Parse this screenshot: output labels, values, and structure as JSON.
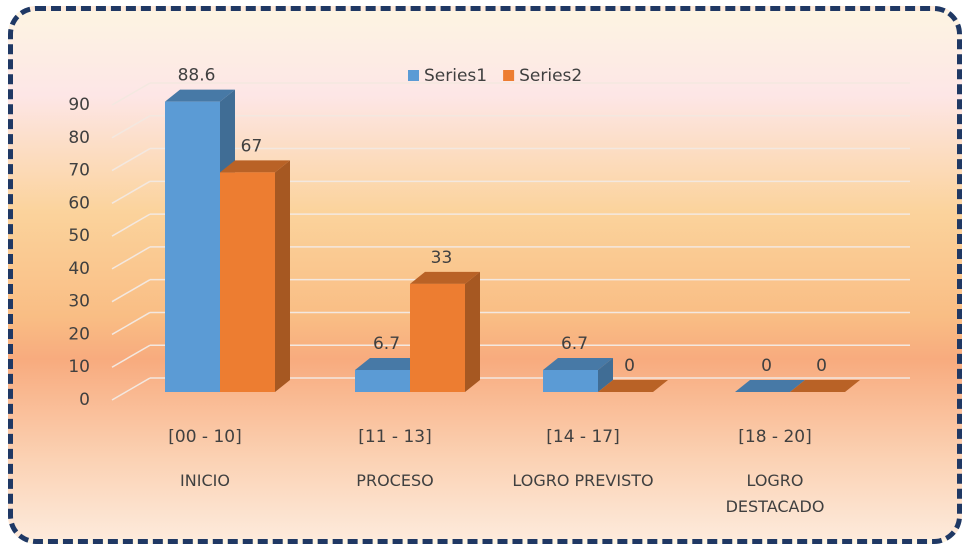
{
  "chart_data": {
    "type": "bar3d",
    "categories": [
      "[00 - 10]",
      "[11 - 13]",
      "[14 - 17]",
      "[18 - 20]"
    ],
    "groups": [
      "INICIO",
      "PROCESO",
      "LOGRO PREVISTO",
      "LOGRO DESTACADO"
    ],
    "series": [
      {
        "name": "Series1",
        "color": "#5b9bd5",
        "values": [
          88.6,
          6.7,
          6.7,
          0
        ]
      },
      {
        "name": "Series2",
        "color": "#ed7d31",
        "values": [
          67,
          33,
          0,
          0
        ]
      }
    ],
    "ylim": [
      0,
      90
    ],
    "yticks": [
      0,
      10,
      20,
      30,
      40,
      50,
      60,
      70,
      80,
      90
    ],
    "grid": true,
    "legend": "top",
    "data_labels": true
  }
}
